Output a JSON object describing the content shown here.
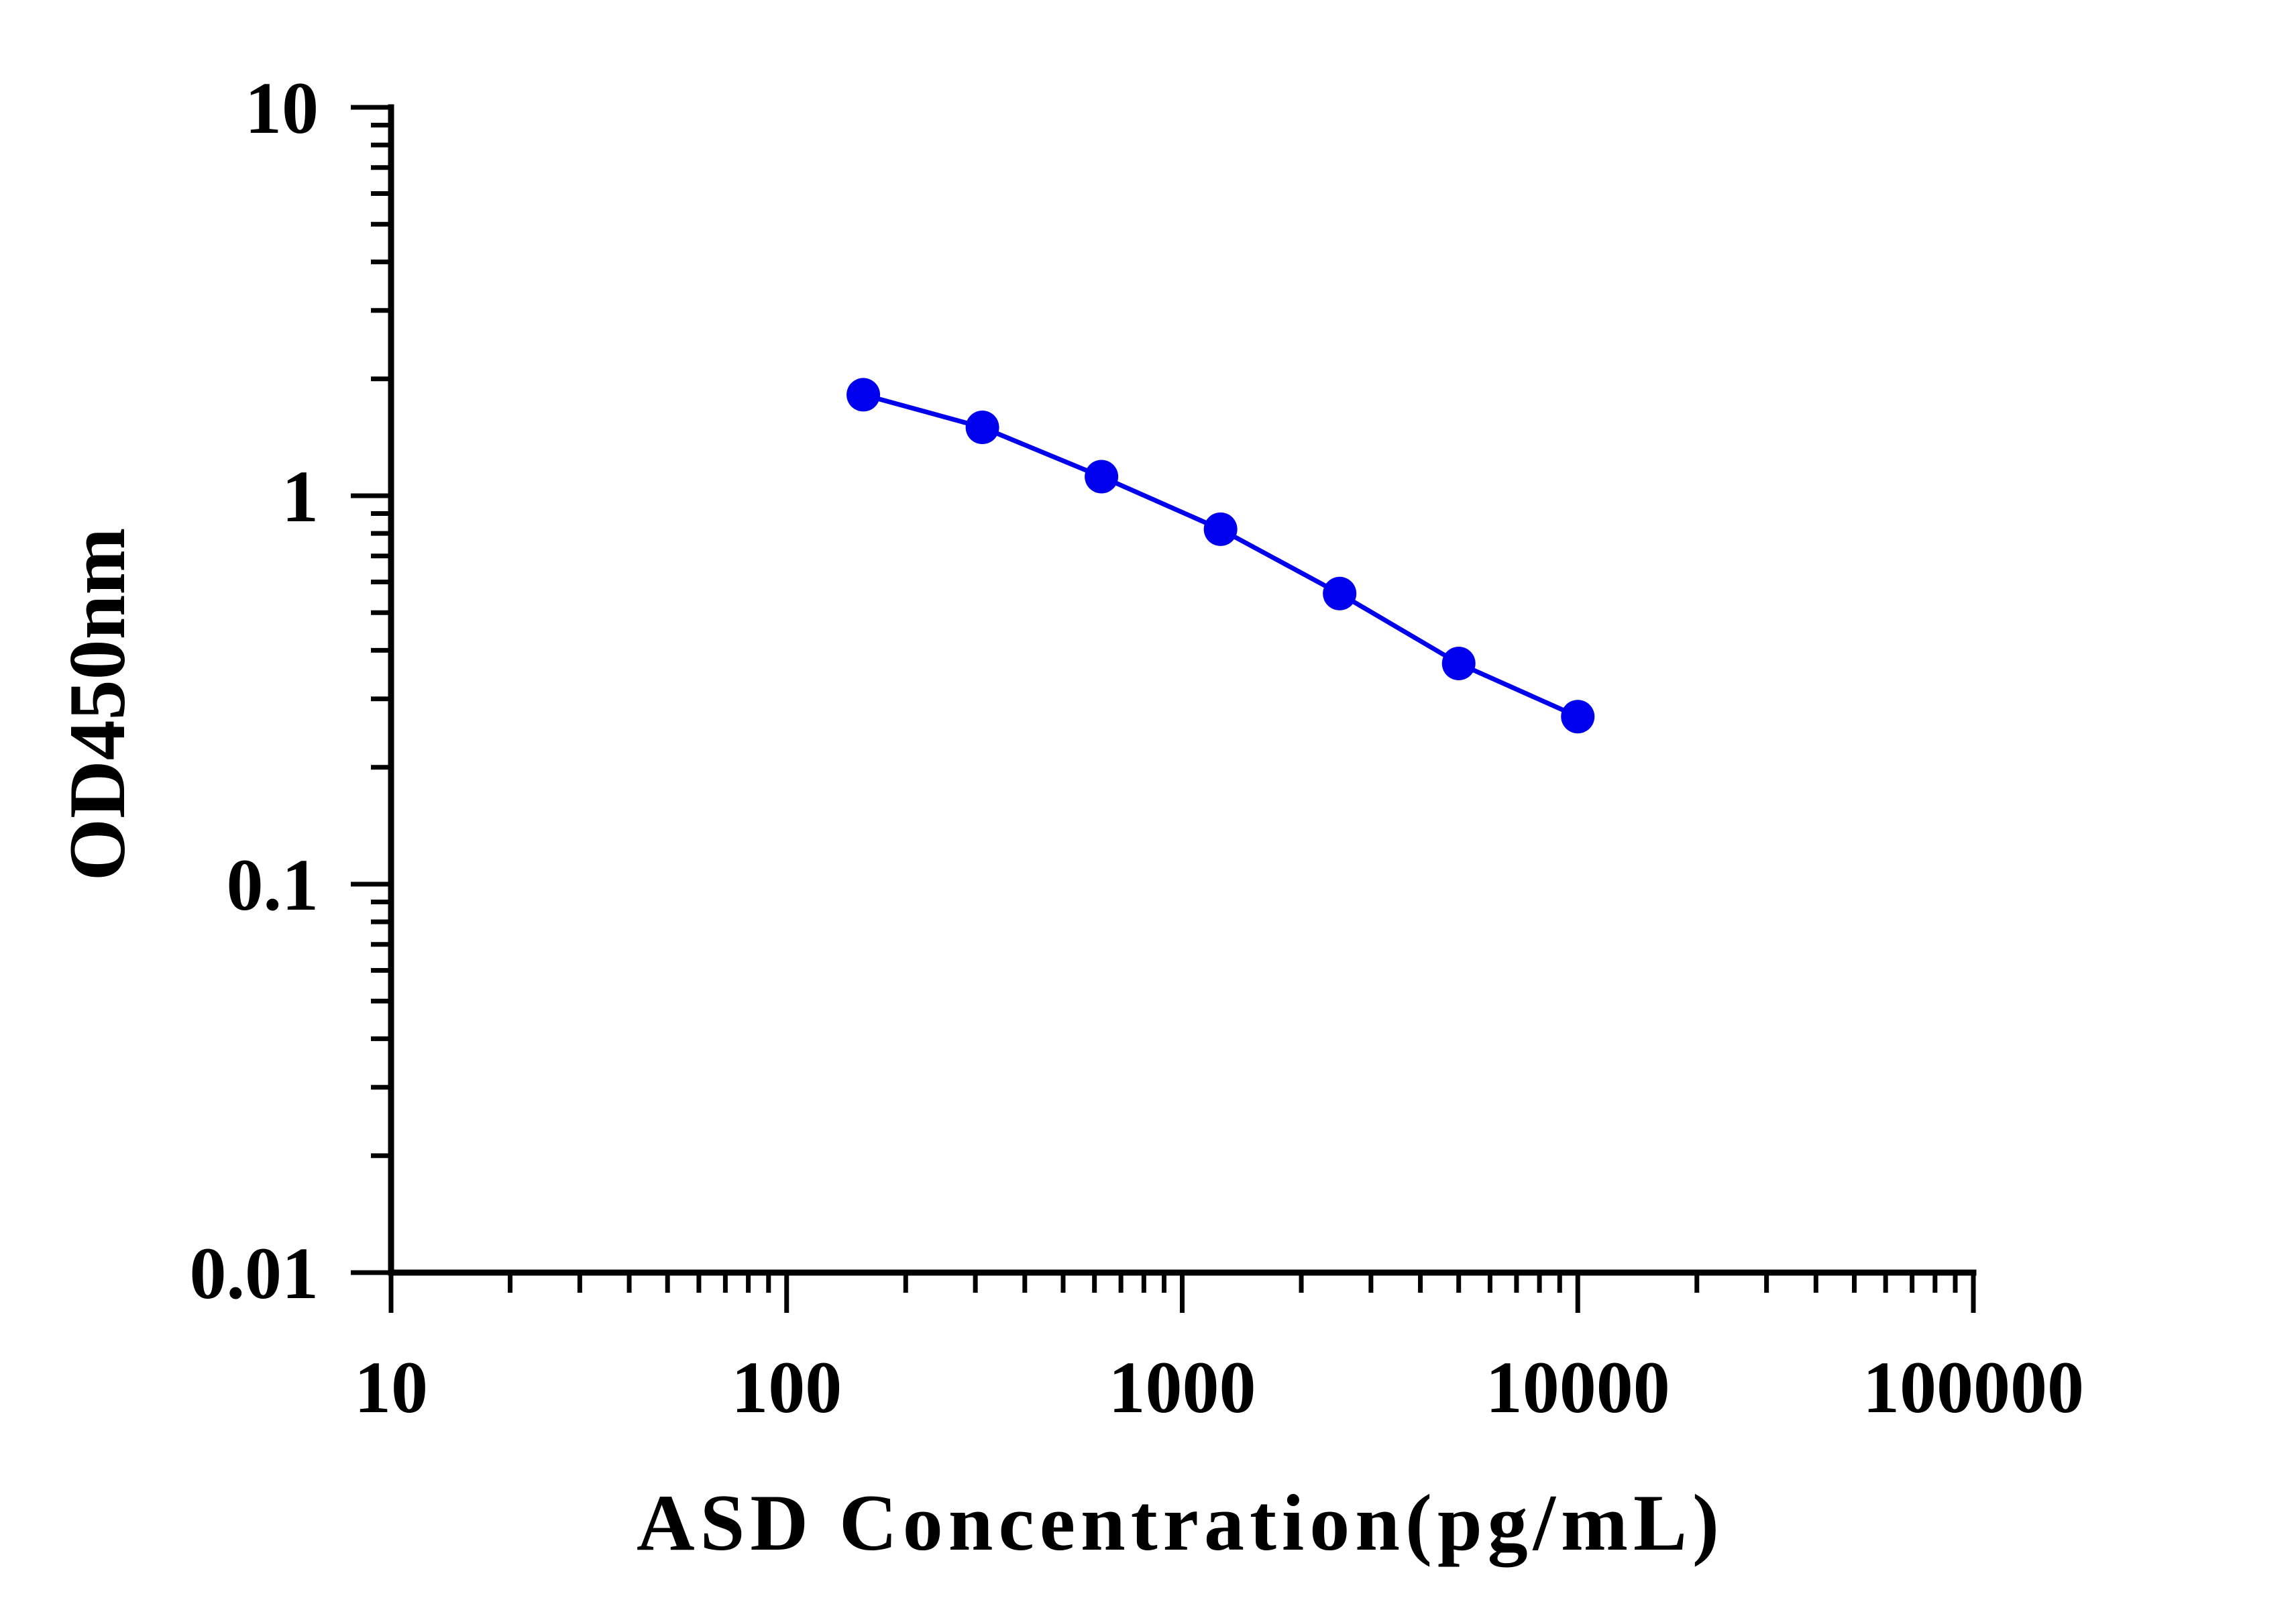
{
  "chart_data": {
    "type": "line",
    "title": "",
    "xlabel": "ASD Concentration(pg/mL)",
    "ylabel": "OD450nm",
    "x_scale": "log",
    "y_scale": "log",
    "xlim": [
      10,
      100000
    ],
    "ylim": [
      0.01,
      10
    ],
    "x_ticks": [
      "10",
      "100",
      "1000",
      "10000",
      "100000"
    ],
    "y_ticks": [
      "0.01",
      "0.1",
      "1",
      "10"
    ],
    "grid": false,
    "legend": "none",
    "series": [
      {
        "color": "#0000ee",
        "marker": "circle",
        "x": [
          156.25,
          312.5,
          625,
          1250,
          2500,
          5000,
          10000
        ],
        "y": [
          1.82,
          1.5,
          1.12,
          0.82,
          0.56,
          0.37,
          0.27
        ]
      }
    ]
  }
}
